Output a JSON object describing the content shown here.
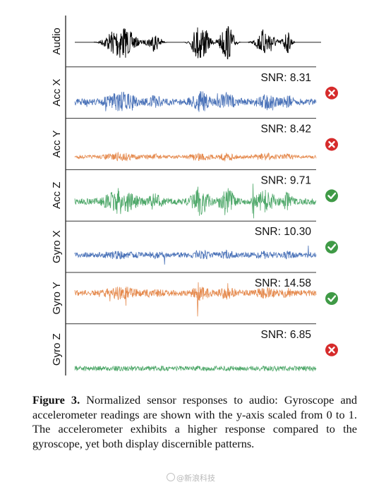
{
  "chart_data": {
    "type": "line",
    "x_range": [
      0,
      1
    ],
    "y_range": [
      0,
      1
    ],
    "panels": [
      {
        "label": "Audio",
        "color": "#000000",
        "snr": "",
        "status": "",
        "status_color": ""
      },
      {
        "label": "Acc X",
        "color": "#4a72b8",
        "snr": "SNR: 8.31",
        "status": "cross",
        "status_color": "#d62b2b"
      },
      {
        "label": "Acc Y",
        "color": "#e58a4e",
        "snr": "SNR: 8.42",
        "status": "cross",
        "status_color": "#d62b2b"
      },
      {
        "label": "Acc Z",
        "color": "#4fa86a",
        "snr": "SNR: 9.71",
        "status": "check",
        "status_color": "#3f9a46"
      },
      {
        "label": "Gyro X",
        "color": "#4a72b8",
        "snr": "SNR: 10.30",
        "status": "check",
        "status_color": "#3f9a46"
      },
      {
        "label": "Gyro Y",
        "color": "#e58a4e",
        "snr": "SNR: 14.58",
        "status": "check",
        "status_color": "#3f9a46"
      },
      {
        "label": "Gyro Z",
        "color": "#4fa86a",
        "snr": "SNR: 6.85",
        "status": "cross",
        "status_color": "#d62b2b"
      }
    ]
  },
  "caption": {
    "label": "Figure 3.",
    "text": " Normalized sensor responses to audio: Gyroscope and accelerometer readings are shown with the y-axis scaled from 0 to 1. The accelerometer exhibits a higher response compared to the gyroscope, yet both display discernible patterns."
  },
  "watermark": "@新浪科技"
}
